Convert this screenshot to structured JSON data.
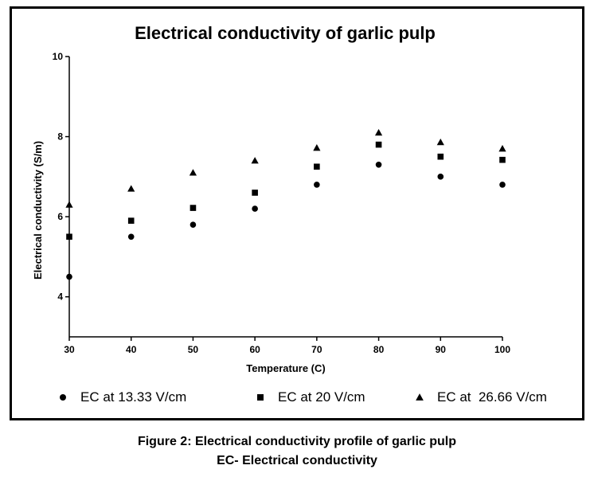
{
  "chart_data": {
    "type": "scatter",
    "title": "Electrical conductivity of garlic pulp",
    "xlabel": "Temperature (C)",
    "ylabel": "Electrical conductivity (S/m)",
    "xlim": [
      30,
      100
    ],
    "ylim": [
      3,
      10
    ],
    "x_ticks": [
      "30",
      "40",
      "50",
      "60",
      "70",
      "80",
      "90",
      "100"
    ],
    "y_ticks": [
      "4",
      "6",
      "8",
      "10"
    ],
    "grid": false,
    "legend_position": "bottom",
    "x": [
      30,
      40,
      50,
      60,
      70,
      80,
      90,
      100
    ],
    "series": [
      {
        "name": "EC at 13.33 V/cm",
        "marker": "circle",
        "values": [
          4.5,
          5.5,
          5.8,
          6.2,
          6.8,
          7.3,
          7.0,
          6.8
        ]
      },
      {
        "name": "EC at 20 V/cm",
        "marker": "square",
        "values": [
          5.5,
          5.9,
          6.22,
          6.6,
          7.25,
          7.8,
          7.5,
          7.42
        ]
      },
      {
        "name": "EC at  26.66 V/cm",
        "marker": "triangle",
        "values": [
          6.3,
          6.7,
          7.1,
          7.4,
          7.72,
          8.1,
          7.86,
          7.7
        ]
      }
    ]
  },
  "captions": {
    "line1": "Figure 2: Electrical conductivity profile of garlic pulp",
    "line2": "EC- Electrical conductivity"
  },
  "colors": {
    "ink": "#000000",
    "background": "#ffffff"
  }
}
